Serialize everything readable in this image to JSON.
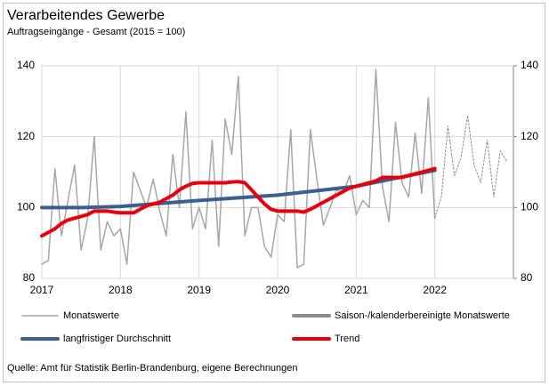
{
  "chart_data": {
    "type": "line",
    "title": "Verarbeitendes Gewerbe",
    "subtitle": "Auftragseingänge - Gesamt (2015 = 100)",
    "source": "Quelle: Amt für Statistik Berlin-Brandenburg, eigene Berechnungen",
    "xlim": [
      2017,
      2023
    ],
    "xticks": [
      2017,
      2018,
      2019,
      2020,
      2021,
      2022
    ],
    "ylim": [
      80,
      140
    ],
    "yticks": [
      80,
      100,
      120,
      140
    ],
    "y2lim": [
      80,
      140
    ],
    "y2ticks": [
      80,
      100,
      120,
      140
    ],
    "grid": true,
    "series": [
      {
        "name": "Monatswerte",
        "color": "#a6a6a6",
        "width": 1.5,
        "dash": false,
        "x": [
          2017,
          2017.083,
          2017.167,
          2017.25,
          2017.333,
          2017.417,
          2017.5,
          2017.583,
          2017.667,
          2017.75,
          2017.833,
          2017.917,
          2018,
          2018.083,
          2018.167,
          2018.25,
          2018.333,
          2018.417,
          2018.5,
          2018.583,
          2018.667,
          2018.75,
          2018.833,
          2018.917,
          2019,
          2019.083,
          2019.167,
          2019.25,
          2019.333,
          2019.417,
          2019.5,
          2019.583,
          2019.667,
          2019.75,
          2019.833,
          2019.917,
          2020,
          2020.083,
          2020.167,
          2020.25,
          2020.333,
          2020.417,
          2020.5,
          2020.583,
          2020.667,
          2020.75,
          2020.833,
          2020.917,
          2021,
          2021.083,
          2021.167,
          2021.25,
          2021.333,
          2021.417,
          2021.5,
          2021.583,
          2021.667,
          2021.75,
          2021.833,
          2021.917,
          2022
        ],
        "values": [
          84,
          85,
          111,
          92,
          102,
          112,
          88,
          97,
          120,
          88,
          96,
          92,
          94,
          84,
          110,
          105,
          100,
          108,
          99,
          92,
          115,
          100,
          127,
          94,
          100,
          94,
          119,
          89,
          125,
          115,
          137,
          92,
          100,
          100,
          89,
          86,
          98,
          96,
          122,
          83,
          84,
          122,
          108,
          95,
          100,
          105,
          104,
          109,
          98,
          102,
          100,
          139,
          106,
          96,
          124,
          107,
          103,
          121,
          104,
          131,
          97
        ]
      },
      {
        "name": "Saison-/kalenderbereinigte Monatswerte",
        "color": "#8c8c8c",
        "width": 4,
        "dash": true,
        "x": [
          2022,
          2022.083,
          2022.167,
          2022.25,
          2022.333,
          2022.417,
          2022.5,
          2022.583,
          2022.667,
          2022.75,
          2022.833,
          2022.917
        ],
        "values": [
          97,
          103,
          123,
          109,
          114,
          126,
          112,
          107,
          119,
          103,
          116,
          113
        ]
      },
      {
        "name": "langfristiger Durchschnitt",
        "color": "#3a5f94",
        "width": 4,
        "dash": false,
        "x": [
          2017,
          2017.5,
          2018,
          2019,
          2020,
          2021,
          2022
        ],
        "values": [
          100,
          100,
          100.3,
          102,
          103.5,
          106,
          110.5
        ]
      },
      {
        "name": "Trend",
        "color": "#e8000b",
        "width": 4,
        "dash": false,
        "x": [
          2017,
          2017.083,
          2017.167,
          2017.25,
          2017.333,
          2017.417,
          2017.5,
          2017.583,
          2017.667,
          2017.75,
          2017.833,
          2017.917,
          2018,
          2018.083,
          2018.167,
          2018.25,
          2018.333,
          2018.417,
          2018.5,
          2018.583,
          2018.667,
          2018.75,
          2018.833,
          2018.917,
          2019,
          2019.083,
          2019.167,
          2019.25,
          2019.333,
          2019.417,
          2019.5,
          2019.583,
          2019.667,
          2019.75,
          2019.833,
          2019.917,
          2020,
          2020.083,
          2020.167,
          2020.25,
          2020.333,
          2020.417,
          2020.5,
          2020.583,
          2020.667,
          2020.75,
          2020.833,
          2020.917,
          2021,
          2021.083,
          2021.167,
          2021.25,
          2021.333,
          2021.417,
          2021.5,
          2021.583,
          2021.667,
          2021.75,
          2021.833,
          2021.917,
          2022
        ],
        "values": [
          92,
          93,
          94,
          95.5,
          96.5,
          97,
          97.5,
          98,
          99,
          99,
          99,
          98.7,
          98.5,
          98.5,
          98.5,
          99.5,
          100.5,
          101,
          101.5,
          102.5,
          103.5,
          105,
          106,
          106.8,
          107,
          107,
          107,
          107,
          107,
          107.2,
          107.3,
          107,
          105,
          103,
          101,
          99.5,
          99,
          99,
          99,
          99,
          98.7,
          99.5,
          100.5,
          101.5,
          102.5,
          103.5,
          104.5,
          105.5,
          106,
          106.5,
          107,
          107.5,
          108.5,
          108.5,
          108.5,
          108.5,
          109,
          109.5,
          110,
          110.5,
          111
        ]
      }
    ]
  }
}
